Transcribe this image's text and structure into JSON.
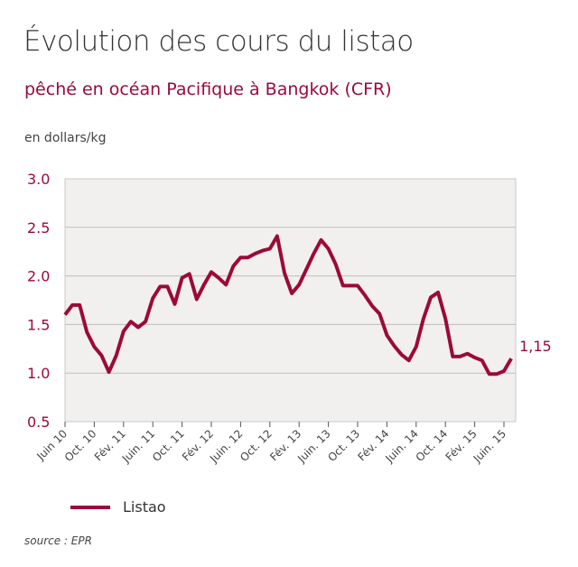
{
  "title": "Évolution des cours du listao",
  "subtitle": "pêché en océan Pacifique à Bangkok (CFR)",
  "source": "source : EPR",
  "chart_data": {
    "type": "line",
    "title": "Évolution des cours du listao",
    "subtitle": "pêché en océan Pacifique à Bangkok (CFR)",
    "ylabel": "en dollars/kg",
    "xlabel": "",
    "ylim": [
      0.5,
      3.0
    ],
    "yticks": [
      "3.0",
      "2.5",
      "2.0",
      "1.5",
      "1.0",
      "0.5"
    ],
    "xlim": [
      "2010-06",
      "2015-07"
    ],
    "xtick_labels": [
      "Juin 10",
      "Oct. 10",
      "Fév. 11",
      "Juin. 11",
      "Oct. 11",
      "Fév. 12",
      "Juin. 12",
      "Oct. 12",
      "Fév. 13",
      "Juin. 13",
      "Oct. 13",
      "Fév. 14",
      "Juin. 14",
      "Oct. 14",
      "Fév. 15",
      "Juin. 15"
    ],
    "grid": true,
    "legend_position": "bottom-left",
    "color": "#9b0a3a",
    "series": [
      {
        "name": "Listao",
        "x": [
          "2010-06",
          "2010-07",
          "2010-08",
          "2010-09",
          "2010-10",
          "2010-11",
          "2010-12",
          "2011-01",
          "2011-02",
          "2011-03",
          "2011-04",
          "2011-05",
          "2011-06",
          "2011-07",
          "2011-08",
          "2011-09",
          "2011-10",
          "2011-11",
          "2011-12",
          "2012-01",
          "2012-02",
          "2012-03",
          "2012-04",
          "2012-05",
          "2012-06",
          "2012-07",
          "2012-08",
          "2012-09",
          "2012-10",
          "2012-11",
          "2012-12",
          "2013-01",
          "2013-02",
          "2013-03",
          "2013-04",
          "2013-05",
          "2013-06",
          "2013-07",
          "2013-08",
          "2013-09",
          "2013-10",
          "2013-11",
          "2013-12",
          "2014-01",
          "2014-02",
          "2014-03",
          "2014-04",
          "2014-05",
          "2014-06",
          "2014-07",
          "2014-08",
          "2014-09",
          "2014-10",
          "2014-11",
          "2014-12",
          "2015-01",
          "2015-02",
          "2015-03",
          "2015-04",
          "2015-05",
          "2015-06",
          "2015-07"
        ],
        "values": [
          1.6,
          1.7,
          1.7,
          1.42,
          1.27,
          1.18,
          1.01,
          1.18,
          1.43,
          1.53,
          1.47,
          1.53,
          1.77,
          1.89,
          1.89,
          1.71,
          1.98,
          2.02,
          1.76,
          1.91,
          2.04,
          1.98,
          1.91,
          2.1,
          2.19,
          2.19,
          2.23,
          2.26,
          2.28,
          2.41,
          2.03,
          1.82,
          1.91,
          2.07,
          2.23,
          2.37,
          2.28,
          2.12,
          1.9,
          1.9,
          1.9,
          1.8,
          1.69,
          1.61,
          1.39,
          1.28,
          1.19,
          1.13,
          1.27,
          1.56,
          1.78,
          1.83,
          1.56,
          1.17,
          1.17,
          1.2,
          1.16,
          1.13,
          0.99,
          0.99,
          1.02,
          1.15
        ]
      }
    ],
    "annotations": [
      {
        "text": "1,15"
      }
    ]
  }
}
